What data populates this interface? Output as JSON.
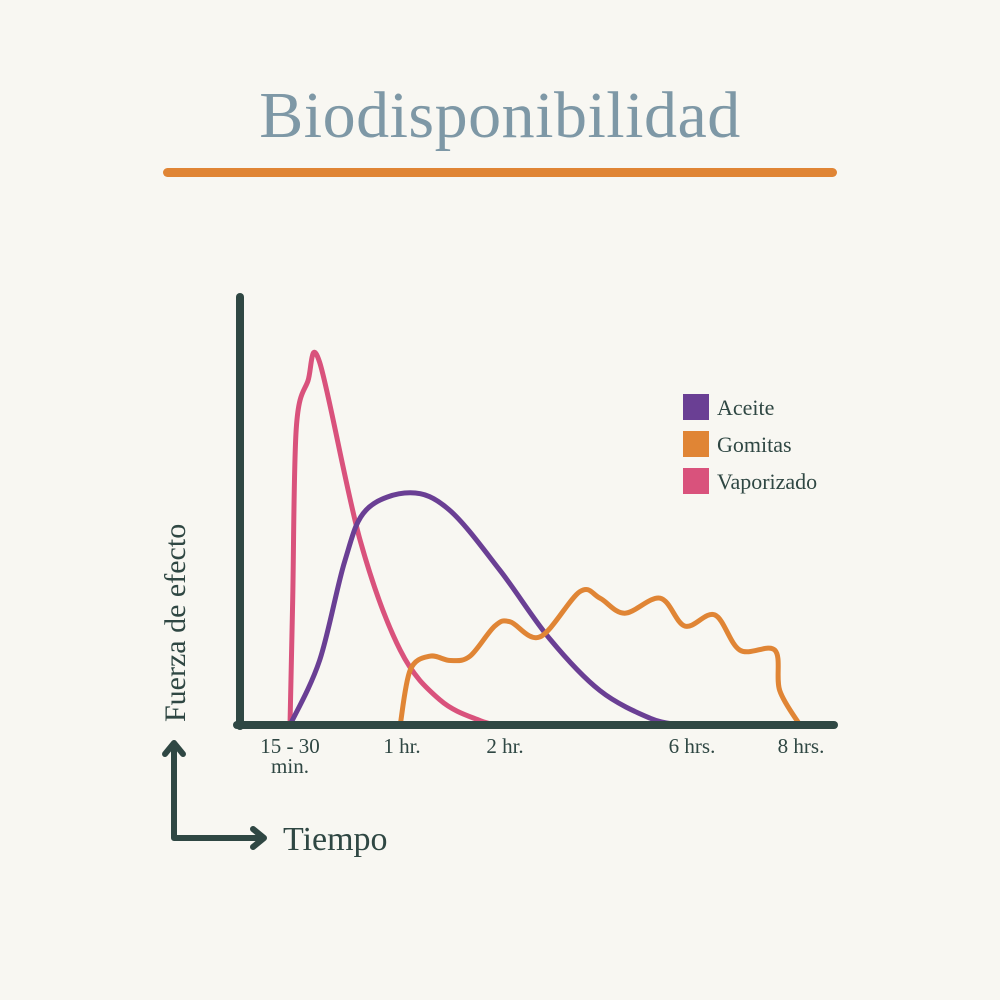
{
  "chart_data": {
    "type": "line",
    "title": "Biodisponibilidad",
    "xlabel": "Tiempo",
    "ylabel": "Fuerza de efecto",
    "x_unit": "hours",
    "x_scale": "non-linear (ticks unevenly spaced)",
    "y_ticks": "none",
    "ylim": [
      0,
      100
    ],
    "grid": false,
    "legend_position": "top-right",
    "x_ticks": [
      {
        "value": 0.375,
        "label": [
          "15 - 30",
          "min."
        ]
      },
      {
        "value": 1,
        "label": [
          "1 hr."
        ]
      },
      {
        "value": 2,
        "label": [
          "2 hr."
        ]
      },
      {
        "value": 6,
        "label": [
          "6 hrs."
        ]
      },
      {
        "value": 8,
        "label": [
          "8 hrs."
        ]
      }
    ],
    "series": [
      {
        "name": "Aceite",
        "color": "#6a3f94",
        "x": [
          0.375,
          0.54,
          0.68,
          0.8,
          1.08,
          1.46,
          1.95,
          2.96,
          4.03,
          5.1,
          5.74
        ],
        "y": [
          0,
          15,
          38,
          50,
          54,
          50,
          36,
          20,
          8,
          1.6,
          0
        ]
      },
      {
        "name": "Gomitas",
        "color": "#e08535",
        "x": [
          0.99,
          1.08,
          1.27,
          1.47,
          1.66,
          1.9,
          2.11,
          2.75,
          3.6,
          4.03,
          4.56,
          5.32,
          5.85,
          6.42,
          6.88,
          7.52,
          7.61,
          7.98
        ],
        "y": [
          0,
          12.8,
          16,
          15,
          16,
          23,
          24,
          20.5,
          31,
          29.5,
          26,
          29.5,
          23,
          25.6,
          17.4,
          17.4,
          8,
          0
        ]
      },
      {
        "name": "Vaporizado",
        "color": "#d9527c",
        "x": [
          0.375,
          0.39,
          0.41,
          0.475,
          0.54,
          0.766,
          0.99,
          1.37,
          1.76,
          1.95
        ],
        "y": [
          0,
          29,
          69,
          80,
          84.4,
          43,
          17.4,
          5.8,
          1,
          0
        ]
      }
    ]
  },
  "axis_color": "#2f4743"
}
